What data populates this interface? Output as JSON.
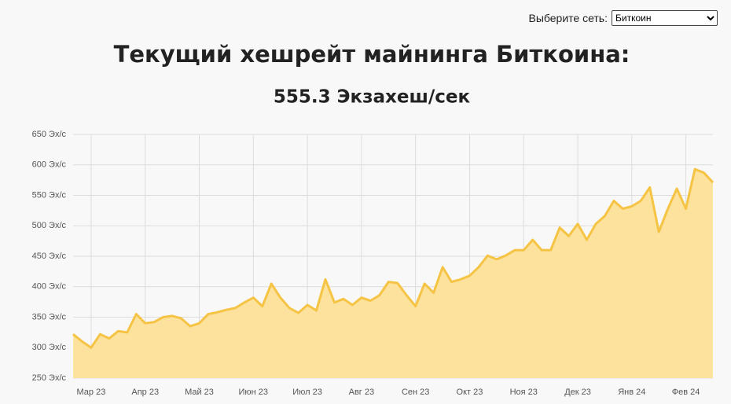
{
  "ui": {
    "network_label": "Выберите сеть:",
    "network_selected": "Биткоин"
  },
  "chart_data": {
    "type": "area",
    "title": "Текущий хешрейт майнинга Биткоина:",
    "subtitle": "555.3 Экзахеш/сек",
    "categories": [
      null,
      null,
      "Мар 23",
      null,
      null,
      null,
      null,
      null,
      "Апр 23",
      null,
      null,
      null,
      null,
      null,
      "Май 23",
      null,
      null,
      null,
      null,
      null,
      "Июн 23",
      null,
      null,
      null,
      null,
      null,
      "Июл 23",
      null,
      null,
      null,
      null,
      null,
      "Авг 23",
      null,
      null,
      null,
      null,
      null,
      "Сен 23",
      null,
      null,
      null,
      null,
      null,
      "Окт 23",
      null,
      null,
      null,
      null,
      null,
      "Ноя 23",
      null,
      null,
      null,
      null,
      null,
      "Дек 23",
      null,
      null,
      null,
      null,
      null,
      "Янв 24",
      null,
      null,
      null,
      null,
      null,
      "Фев 24",
      null,
      null,
      null
    ],
    "values": [
      322,
      310,
      300,
      322,
      315,
      327,
      325,
      355,
      340,
      342,
      350,
      352,
      348,
      335,
      340,
      355,
      358,
      362,
      365,
      374,
      382,
      368,
      405,
      382,
      365,
      357,
      370,
      361,
      412,
      374,
      380,
      370,
      382,
      377,
      386,
      408,
      406,
      386,
      368,
      405,
      390,
      432,
      408,
      412,
      418,
      432,
      451,
      445,
      451,
      460,
      460,
      477,
      460,
      460,
      497,
      483,
      503,
      477,
      503,
      516,
      541,
      528,
      532,
      541,
      563,
      490,
      528,
      561,
      528,
      593,
      587,
      571
    ],
    "color": "#f6c445",
    "fill": "#fde29d",
    "ylim": [
      250,
      650
    ],
    "yticks": [
      {
        "value": 250,
        "label": "250 Эх/с"
      },
      {
        "value": 300,
        "label": "300 Эх/с"
      },
      {
        "value": 350,
        "label": "350 Эх/с"
      },
      {
        "value": 400,
        "label": "400 Эх/с"
      },
      {
        "value": 450,
        "label": "450 Эх/с"
      },
      {
        "value": 500,
        "label": "500 Эх/с"
      },
      {
        "value": 550,
        "label": "550 Эх/с"
      },
      {
        "value": 600,
        "label": "600 Эх/с"
      },
      {
        "value": 650,
        "label": "650 Эх/с"
      }
    ],
    "grid": true
  }
}
